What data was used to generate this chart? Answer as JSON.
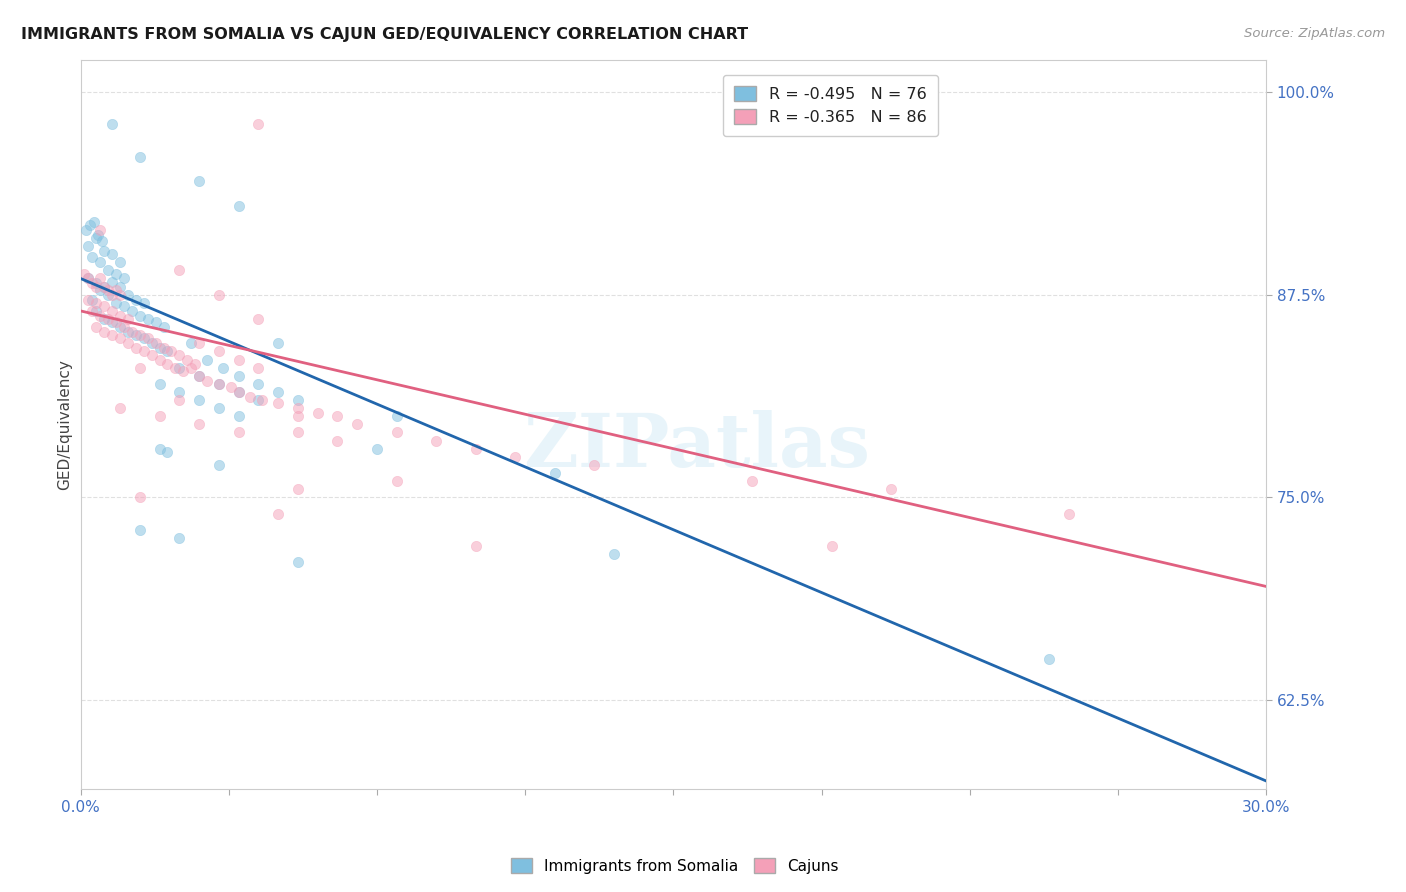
{
  "title": "IMMIGRANTS FROM SOMALIA VS CAJUN GED/EQUIVALENCY CORRELATION CHART",
  "source": "Source: ZipAtlas.com",
  "ylabel": "GED/Equivalency",
  "xlim": [
    0.0,
    30.0
  ],
  "ylim": [
    57.0,
    102.0
  ],
  "yticks": [
    62.5,
    75.0,
    87.5,
    100.0
  ],
  "xticks": [
    0.0,
    3.75,
    7.5,
    11.25,
    15.0,
    18.75,
    22.5,
    26.25,
    30.0
  ],
  "somalia_color": "#7fbfdf",
  "cajun_color": "#f4a0b8",
  "somalia_line_color": "#2166ac",
  "cajun_line_color": "#e06080",
  "watermark": "ZIPatlas",
  "background_color": "#ffffff",
  "grid_color": "#dddddd",
  "title_color": "#1a1a1a",
  "axis_label_color": "#4472c4",
  "somalia_line_x0": 0.0,
  "somalia_line_y0": 88.5,
  "somalia_line_x1": 30.0,
  "somalia_line_y1": 57.5,
  "cajun_line_x0": 0.0,
  "cajun_line_y0": 86.5,
  "cajun_line_x1": 30.0,
  "cajun_line_y1": 69.5,
  "somalia_points": [
    [
      0.15,
      91.5
    ],
    [
      0.25,
      91.8
    ],
    [
      0.35,
      92.0
    ],
    [
      0.45,
      91.2
    ],
    [
      0.55,
      90.8
    ],
    [
      0.2,
      90.5
    ],
    [
      0.4,
      91.0
    ],
    [
      0.6,
      90.2
    ],
    [
      0.8,
      90.0
    ],
    [
      1.0,
      89.5
    ],
    [
      0.3,
      89.8
    ],
    [
      0.5,
      89.5
    ],
    [
      0.7,
      89.0
    ],
    [
      0.9,
      88.8
    ],
    [
      1.1,
      88.5
    ],
    [
      0.2,
      88.5
    ],
    [
      0.4,
      88.2
    ],
    [
      0.6,
      88.0
    ],
    [
      0.8,
      88.3
    ],
    [
      1.0,
      88.0
    ],
    [
      1.2,
      87.5
    ],
    [
      1.4,
      87.2
    ],
    [
      1.6,
      87.0
    ],
    [
      0.5,
      87.8
    ],
    [
      0.7,
      87.5
    ],
    [
      0.3,
      87.2
    ],
    [
      0.9,
      87.0
    ],
    [
      1.1,
      86.8
    ],
    [
      1.3,
      86.5
    ],
    [
      1.5,
      86.2
    ],
    [
      1.7,
      86.0
    ],
    [
      1.9,
      85.8
    ],
    [
      2.1,
      85.5
    ],
    [
      0.4,
      86.5
    ],
    [
      0.6,
      86.0
    ],
    [
      0.8,
      85.8
    ],
    [
      1.0,
      85.5
    ],
    [
      1.2,
      85.2
    ],
    [
      1.4,
      85.0
    ],
    [
      1.6,
      84.8
    ],
    [
      1.8,
      84.5
    ],
    [
      2.0,
      84.2
    ],
    [
      2.2,
      84.0
    ],
    [
      2.8,
      84.5
    ],
    [
      3.2,
      83.5
    ],
    [
      3.6,
      83.0
    ],
    [
      4.0,
      82.5
    ],
    [
      4.5,
      82.0
    ],
    [
      5.0,
      81.5
    ],
    [
      5.5,
      81.0
    ],
    [
      2.5,
      83.0
    ],
    [
      3.0,
      82.5
    ],
    [
      3.5,
      82.0
    ],
    [
      4.0,
      81.5
    ],
    [
      4.5,
      81.0
    ],
    [
      2.0,
      82.0
    ],
    [
      2.5,
      81.5
    ],
    [
      3.0,
      81.0
    ],
    [
      3.5,
      80.5
    ],
    [
      4.0,
      80.0
    ],
    [
      2.0,
      78.0
    ],
    [
      2.2,
      77.8
    ],
    [
      3.5,
      77.0
    ],
    [
      7.5,
      78.0
    ],
    [
      1.5,
      73.0
    ],
    [
      2.5,
      72.5
    ],
    [
      5.5,
      71.0
    ],
    [
      13.5,
      71.5
    ],
    [
      0.8,
      98.0
    ],
    [
      1.5,
      96.0
    ],
    [
      3.0,
      94.5
    ],
    [
      4.0,
      93.0
    ],
    [
      5.0,
      84.5
    ],
    [
      8.0,
      80.0
    ],
    [
      12.0,
      76.5
    ],
    [
      24.5,
      65.0
    ]
  ],
  "cajun_points": [
    [
      0.1,
      88.8
    ],
    [
      0.2,
      88.5
    ],
    [
      0.3,
      88.2
    ],
    [
      0.4,
      88.0
    ],
    [
      0.5,
      88.5
    ],
    [
      0.6,
      88.0
    ],
    [
      0.7,
      87.8
    ],
    [
      0.8,
      87.5
    ],
    [
      0.9,
      87.8
    ],
    [
      1.0,
      87.5
    ],
    [
      0.2,
      87.2
    ],
    [
      0.4,
      87.0
    ],
    [
      0.6,
      86.8
    ],
    [
      0.8,
      86.5
    ],
    [
      1.0,
      86.2
    ],
    [
      1.2,
      86.0
    ],
    [
      0.3,
      86.5
    ],
    [
      0.5,
      86.2
    ],
    [
      0.7,
      86.0
    ],
    [
      0.9,
      85.8
    ],
    [
      1.1,
      85.5
    ],
    [
      1.3,
      85.2
    ],
    [
      1.5,
      85.0
    ],
    [
      1.7,
      84.8
    ],
    [
      1.9,
      84.5
    ],
    [
      2.1,
      84.2
    ],
    [
      2.3,
      84.0
    ],
    [
      2.5,
      83.8
    ],
    [
      2.7,
      83.5
    ],
    [
      2.9,
      83.2
    ],
    [
      0.4,
      85.5
    ],
    [
      0.6,
      85.2
    ],
    [
      0.8,
      85.0
    ],
    [
      1.0,
      84.8
    ],
    [
      1.2,
      84.5
    ],
    [
      1.4,
      84.2
    ],
    [
      1.6,
      84.0
    ],
    [
      1.8,
      83.8
    ],
    [
      2.0,
      83.5
    ],
    [
      2.2,
      83.2
    ],
    [
      2.4,
      83.0
    ],
    [
      2.6,
      82.8
    ],
    [
      2.8,
      83.0
    ],
    [
      3.0,
      82.5
    ],
    [
      3.2,
      82.2
    ],
    [
      3.5,
      82.0
    ],
    [
      3.8,
      81.8
    ],
    [
      4.0,
      81.5
    ],
    [
      4.3,
      81.2
    ],
    [
      4.6,
      81.0
    ],
    [
      5.0,
      80.8
    ],
    [
      5.5,
      80.5
    ],
    [
      5.5,
      80.0
    ],
    [
      6.0,
      80.2
    ],
    [
      6.5,
      80.0
    ],
    [
      7.0,
      79.5
    ],
    [
      8.0,
      79.0
    ],
    [
      9.0,
      78.5
    ],
    [
      10.0,
      78.0
    ],
    [
      11.0,
      77.5
    ],
    [
      3.5,
      84.0
    ],
    [
      4.0,
      83.5
    ],
    [
      4.5,
      83.0
    ],
    [
      3.0,
      84.5
    ],
    [
      1.5,
      83.0
    ],
    [
      2.5,
      81.0
    ],
    [
      5.5,
      79.0
    ],
    [
      6.5,
      78.5
    ],
    [
      1.0,
      80.5
    ],
    [
      2.0,
      80.0
    ],
    [
      3.0,
      79.5
    ],
    [
      4.0,
      79.0
    ],
    [
      0.5,
      91.5
    ],
    [
      2.5,
      89.0
    ],
    [
      3.5,
      87.5
    ],
    [
      4.5,
      86.0
    ],
    [
      13.0,
      77.0
    ],
    [
      17.0,
      76.0
    ],
    [
      20.5,
      75.5
    ],
    [
      25.0,
      74.0
    ],
    [
      1.5,
      75.0
    ],
    [
      5.0,
      74.0
    ],
    [
      19.0,
      72.0
    ],
    [
      8.0,
      76.0
    ],
    [
      5.5,
      75.5
    ],
    [
      10.0,
      72.0
    ],
    [
      4.5,
      98.0
    ]
  ]
}
